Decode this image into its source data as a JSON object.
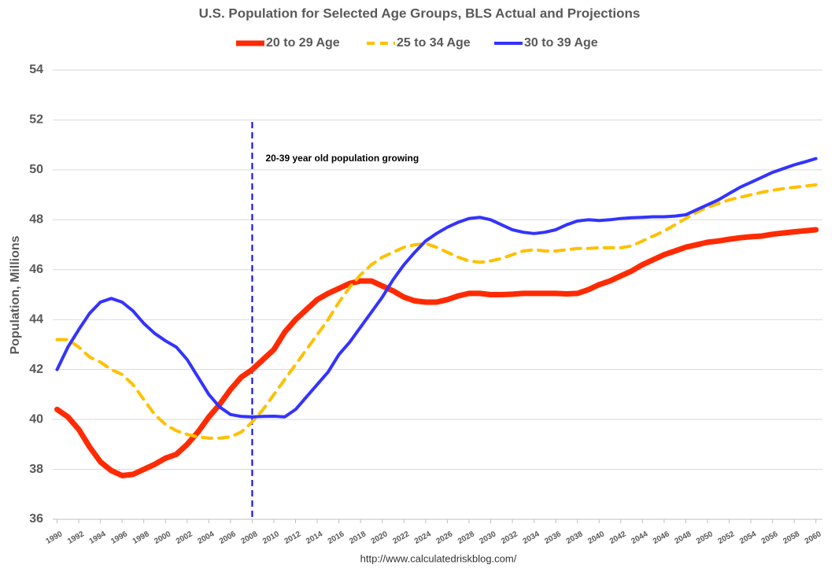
{
  "chart_data": {
    "type": "line",
    "title": "U.S. Population for Selected Age Groups, BLS Actual and Projections",
    "y_label": "Population, Millions",
    "source": "http://www.calculatedriskblog.com/",
    "annotation": "20-39 year old population growing",
    "vline": 2008,
    "grid": true,
    "x": [
      1990,
      1991,
      1992,
      1993,
      1994,
      1995,
      1996,
      1997,
      1998,
      1999,
      2000,
      2001,
      2002,
      2003,
      2004,
      2005,
      2006,
      2007,
      2008,
      2009,
      2010,
      2011,
      2012,
      2013,
      2014,
      2015,
      2016,
      2017,
      2018,
      2019,
      2020,
      2021,
      2022,
      2023,
      2024,
      2025,
      2026,
      2027,
      2028,
      2029,
      2030,
      2031,
      2032,
      2033,
      2034,
      2035,
      2036,
      2037,
      2038,
      2039,
      2040,
      2041,
      2042,
      2043,
      2044,
      2045,
      2046,
      2047,
      2048,
      2049,
      2050,
      2051,
      2052,
      2053,
      2054,
      2055,
      2056,
      2057,
      2058,
      2059,
      2060
    ],
    "xlim": [
      1989.6,
      2060.6
    ],
    "xticks": [
      1990,
      1992,
      1994,
      1996,
      1998,
      2000,
      2002,
      2004,
      2006,
      2008,
      2010,
      2012,
      2014,
      2016,
      2018,
      2020,
      2022,
      2024,
      2026,
      2028,
      2030,
      2032,
      2034,
      2036,
      2038,
      2040,
      2042,
      2044,
      2046,
      2048,
      2050,
      2052,
      2054,
      2056,
      2058,
      2060
    ],
    "ylim": [
      36,
      54
    ],
    "yticks": [
      36,
      38,
      40,
      42,
      44,
      46,
      48,
      50,
      52,
      54
    ],
    "series": [
      {
        "name": "20 to 29 Age",
        "color": "#ff2a00",
        "style": "solid",
        "width": 7,
        "values": [
          40.4,
          40.1,
          39.6,
          38.9,
          38.3,
          37.95,
          37.75,
          37.8,
          38.0,
          38.2,
          38.45,
          38.6,
          39.0,
          39.5,
          40.1,
          40.6,
          41.2,
          41.7,
          42.0,
          42.4,
          42.8,
          43.5,
          44.0,
          44.4,
          44.8,
          45.05,
          45.25,
          45.45,
          45.55,
          45.55,
          45.35,
          45.15,
          44.9,
          44.75,
          44.7,
          44.7,
          44.8,
          44.95,
          45.05,
          45.05,
          45.0,
          45.0,
          45.02,
          45.05,
          45.05,
          45.05,
          45.05,
          45.03,
          45.05,
          45.2,
          45.4,
          45.55,
          45.75,
          45.95,
          46.2,
          46.4,
          46.6,
          46.75,
          46.9,
          47.0,
          47.1,
          47.15,
          47.22,
          47.28,
          47.32,
          47.35,
          47.42,
          47.47,
          47.52,
          47.56,
          47.6
        ]
      },
      {
        "name": "25 to 34 Age",
        "color": "#ffc000",
        "style": "dashed",
        "width": 4,
        "values": [
          43.2,
          43.2,
          42.9,
          42.5,
          42.3,
          42.0,
          41.8,
          41.4,
          40.8,
          40.2,
          39.8,
          39.55,
          39.4,
          39.3,
          39.25,
          39.25,
          39.3,
          39.5,
          39.9,
          40.4,
          41.0,
          41.6,
          42.2,
          42.8,
          43.4,
          44.0,
          44.7,
          45.3,
          45.8,
          46.2,
          46.5,
          46.7,
          46.9,
          47.0,
          47.05,
          46.9,
          46.7,
          46.5,
          46.35,
          46.3,
          46.35,
          46.45,
          46.6,
          46.75,
          46.8,
          46.75,
          46.75,
          46.8,
          46.85,
          46.85,
          46.88,
          46.88,
          46.88,
          46.95,
          47.15,
          47.35,
          47.55,
          47.8,
          48.05,
          48.3,
          48.5,
          48.65,
          48.8,
          48.9,
          49.0,
          49.1,
          49.18,
          49.25,
          49.3,
          49.35,
          49.4
        ]
      },
      {
        "name": "30 to 39 Age",
        "color": "#3333ff",
        "style": "solid",
        "width": 4,
        "values": [
          42.0,
          42.9,
          43.6,
          44.25,
          44.7,
          44.85,
          44.7,
          44.35,
          43.85,
          43.45,
          43.15,
          42.9,
          42.4,
          41.7,
          41.0,
          40.5,
          40.2,
          40.12,
          40.1,
          40.12,
          40.13,
          40.1,
          40.4,
          40.9,
          41.4,
          41.9,
          42.6,
          43.1,
          43.7,
          44.3,
          44.9,
          45.6,
          46.2,
          46.7,
          47.15,
          47.45,
          47.7,
          47.9,
          48.05,
          48.1,
          48.0,
          47.8,
          47.6,
          47.5,
          47.45,
          47.5,
          47.6,
          47.8,
          47.95,
          48.0,
          47.97,
          48.0,
          48.05,
          48.08,
          48.1,
          48.12,
          48.12,
          48.15,
          48.2,
          48.4,
          48.6,
          48.8,
          49.05,
          49.3,
          49.5,
          49.7,
          49.9,
          50.05,
          50.2,
          50.32,
          50.45
        ]
      }
    ]
  }
}
